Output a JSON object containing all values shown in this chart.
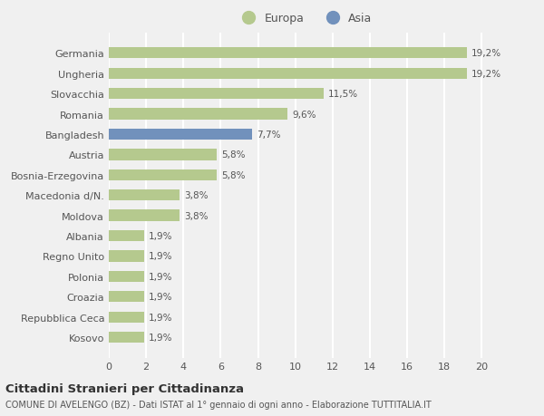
{
  "categories": [
    "Germania",
    "Ungheria",
    "Slovacchia",
    "Romania",
    "Bangladesh",
    "Austria",
    "Bosnia-Erzegovina",
    "Macedonia d/N.",
    "Moldova",
    "Albania",
    "Regno Unito",
    "Polonia",
    "Croazia",
    "Repubblica Ceca",
    "Kosovo"
  ],
  "values": [
    19.2,
    19.2,
    11.5,
    9.6,
    7.7,
    5.8,
    5.8,
    3.8,
    3.8,
    1.9,
    1.9,
    1.9,
    1.9,
    1.9,
    1.9
  ],
  "labels": [
    "19,2%",
    "19,2%",
    "11,5%",
    "9,6%",
    "7,7%",
    "5,8%",
    "5,8%",
    "3,8%",
    "3,8%",
    "1,9%",
    "1,9%",
    "1,9%",
    "1,9%",
    "1,9%",
    "1,9%"
  ],
  "continents": [
    "Europa",
    "Europa",
    "Europa",
    "Europa",
    "Asia",
    "Europa",
    "Europa",
    "Europa",
    "Europa",
    "Europa",
    "Europa",
    "Europa",
    "Europa",
    "Europa",
    "Europa"
  ],
  "europa_color": "#b5c98e",
  "asia_color": "#7191bc",
  "background_color": "#f0f0f0",
  "plot_bg_color": "#f0f0f0",
  "grid_color": "#ffffff",
  "text_color": "#555555",
  "xlim": [
    0,
    21
  ],
  "xticks": [
    0,
    2,
    4,
    6,
    8,
    10,
    12,
    14,
    16,
    18,
    20
  ],
  "title": "Cittadini Stranieri per Cittadinanza",
  "subtitle": "COMUNE DI AVELENGO (BZ) - Dati ISTAT al 1° gennaio di ogni anno - Elaborazione TUTTITALIA.IT",
  "legend_europa": "Europa",
  "legend_asia": "Asia",
  "bar_height": 0.55
}
